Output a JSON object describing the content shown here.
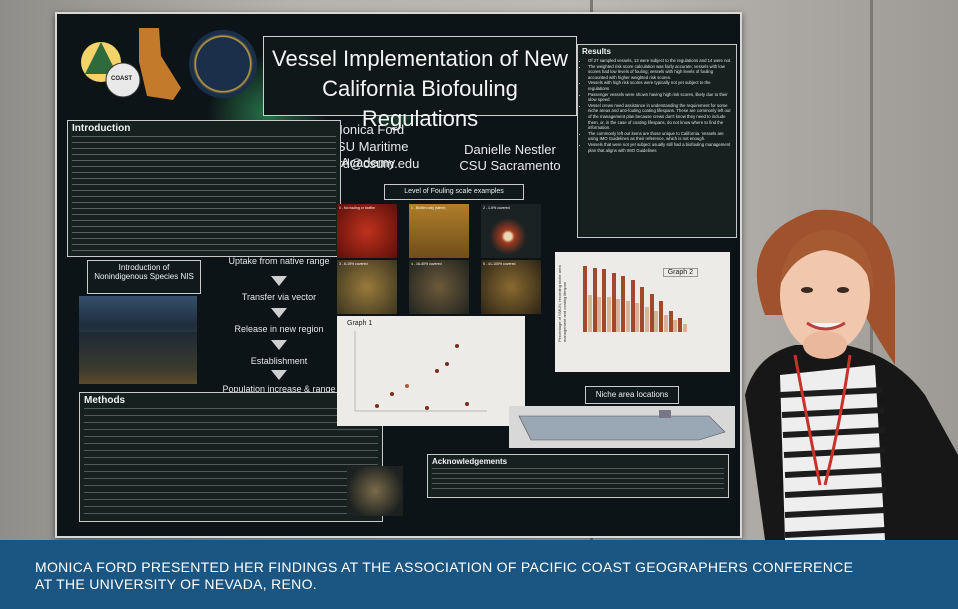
{
  "poster": {
    "title": "Vessel Implementation of New California Biofouling Regulations",
    "logo_text": "COAST",
    "author1_name": "Monica Ford",
    "author1_affiliation": "CSU Maritime Academy",
    "author1_email": "mford@csum.edu",
    "author2_name": "Danielle Nestler",
    "author2_affiliation": "CSU Sacramento",
    "introduction_heading": "Introduction",
    "introduction_heading2": "Introduction of Nonindigenous Species NIS",
    "flow_steps": [
      "Uptake from native range",
      "Transfer via vector",
      "Release in new region",
      "Establishment",
      "Population increase & range expansion"
    ],
    "fouling_heading": "Level of Fouling scale examples",
    "fouling_labels": [
      "0 - No fouling or biofilm",
      "1 - Biofilm only (slime)",
      "2 - 1-5% covered",
      "3 - 6-15% covered",
      "4 - 16-40% covered",
      "5 - 41-100% covered"
    ],
    "graph1_label": "Graph 1",
    "graph2_label": "Graph 2",
    "graph2_ylabel": "Percentage of NMUN, recording niche area management and coating lifespan",
    "results_heading": "Results",
    "results_items": [
      "Of 27 sampled vessels, 13 were subject to the regulations and 14 were not.",
      "The weighted risk score calculation was fairly accurate; vessels with low scores had low levels of fouling; vessels with high levels of fouling accounted with higher weighted risk scores.",
      "Vessels with high risk scores were typically not yet subject to the regulations",
      "Passenger vessels were shown having high risk scores, likely due to their slow speed",
      "Vessel crews need assistance in understanding the requirement for some niche areas and anti-fouling coating lifespans. These are commonly left out of the management plan because crews don't know they need to include them, or, in the case of coating lifespans, do not know where to find the information.",
      "The commonly left out items are those unique to California. Vessels are using IMO Guidelines as their reference, which is not enough.",
      "Vessels that were not yet subject usually still had a biofouling management plan that aligns with IMO Guidelines"
    ],
    "methods_heading": "Methods",
    "niche_heading": "Niche area locations",
    "acknowledgements_heading": "Acknowledgements"
  },
  "caption": {
    "text": "MONICA FORD PRESENTED HER FINDINGS AT THE ASSOCIATION OF PACIFIC COAST GEOGRAPHERS CONFERENCE AT THE UNIVERSITY OF NEVADA, RENO."
  },
  "colors": {
    "caption_bg": "#1b5582",
    "poster_bg": "#0d1418",
    "bar_primary": "#a1492a",
    "bar_secondary": "#d6b596"
  }
}
